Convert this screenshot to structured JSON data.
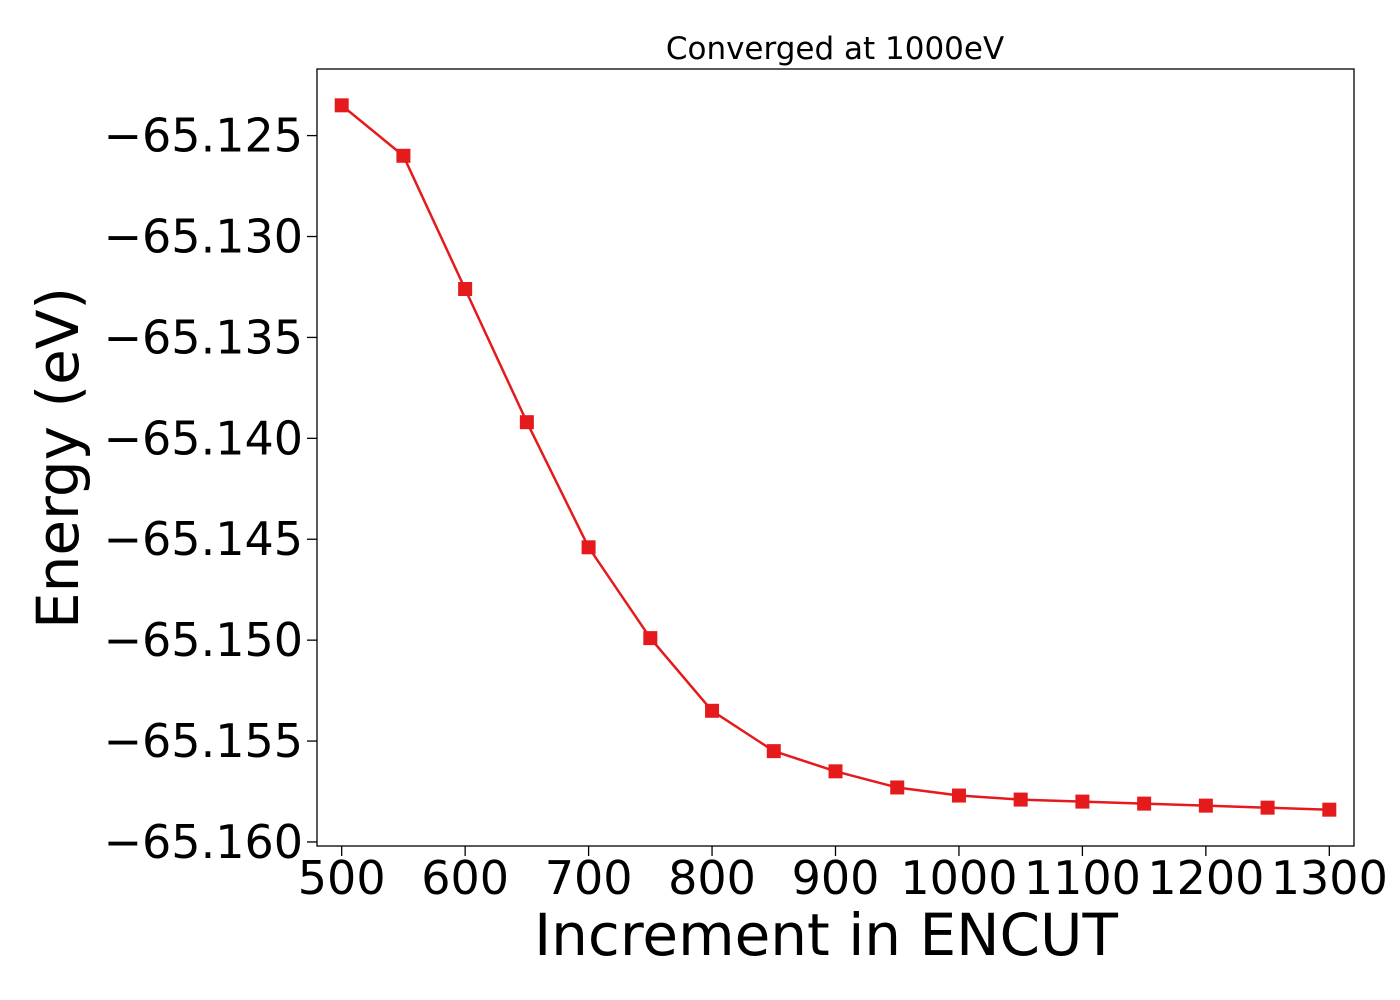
{
  "chart_data": {
    "type": "line",
    "title": "Converged at 1000eV",
    "xlabel": "Increment in ENCUT",
    "ylabel": "Energy (eV)",
    "xlim": [
      480,
      1320
    ],
    "ylim": [
      -65.1602,
      -65.1217
    ],
    "x_ticks": [
      500,
      600,
      700,
      800,
      900,
      1000,
      1100,
      1200,
      1300
    ],
    "x_tick_labels": [
      "500",
      "600",
      "700",
      "800",
      "900",
      "1000",
      "1100",
      "1200",
      "1300"
    ],
    "y_ticks": [
      -65.125,
      -65.13,
      -65.135,
      -65.14,
      -65.145,
      -65.15,
      -65.155,
      -65.16
    ],
    "y_tick_labels": [
      "−65.125",
      "−65.130",
      "−65.135",
      "−65.140",
      "−65.145",
      "−65.150",
      "−65.155",
      "−65.160"
    ],
    "grid": false,
    "series": [
      {
        "color": "#e41a1c",
        "marker": "square",
        "x": [
          500,
          550,
          600,
          650,
          700,
          750,
          800,
          850,
          900,
          950,
          1000,
          1050,
          1100,
          1150,
          1200,
          1250,
          1300
        ],
        "y": [
          -65.1235,
          -65.126,
          -65.1326,
          -65.1392,
          -65.1454,
          -65.1499,
          -65.1535,
          -65.1555,
          -65.1565,
          -65.1573,
          -65.1577,
          -65.1579,
          -65.158,
          -65.1581,
          -65.1582,
          -65.1583,
          -65.1584
        ]
      }
    ]
  }
}
